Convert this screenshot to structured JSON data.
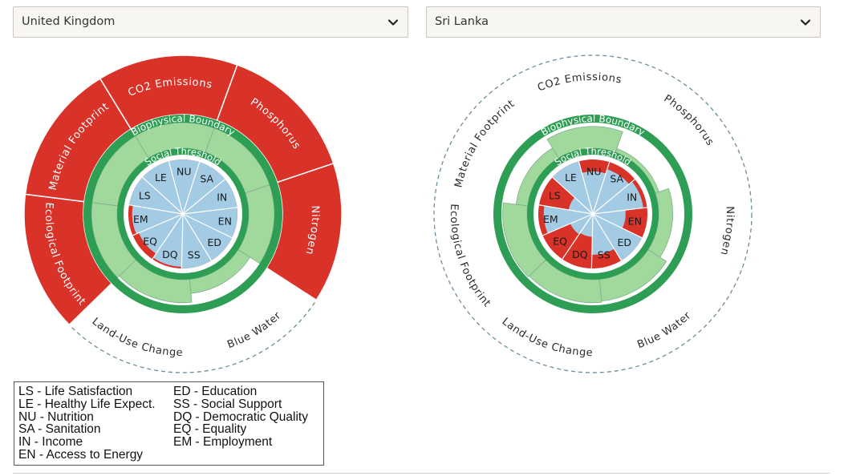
{
  "selectors": {
    "left": {
      "value": "United Kingdom"
    },
    "right": {
      "value": "Sri Lanka"
    }
  },
  "chart_data": [
    {
      "type": "doughnut",
      "country": "United Kingdom",
      "boundary_label": "Biophysical Boundary",
      "threshold_label": "Social Threshold",
      "biophysical": [
        {
          "label": "Phosphorus",
          "value": 2.1,
          "exceeds": true
        },
        {
          "label": "Nitrogen",
          "value": 2.1,
          "exceeds": true
        },
        {
          "label": "Blue Water",
          "value": 0.55,
          "exceeds": false
        },
        {
          "label": "Land-Use Change",
          "value": 0.9,
          "exceeds": false
        },
        {
          "label": "Ecological Footprint",
          "value": 2.1,
          "exceeds": true
        },
        {
          "label": "Material Footprint",
          "value": 2.1,
          "exceeds": true
        },
        {
          "label": "CO2 Emissions",
          "value": 2.1,
          "exceeds": true
        }
      ],
      "social": [
        {
          "code": "NU",
          "value": 1.0
        },
        {
          "code": "SA",
          "value": 1.0
        },
        {
          "code": "IN",
          "value": 1.0
        },
        {
          "code": "EN",
          "value": 1.0
        },
        {
          "code": "ED",
          "value": 1.0
        },
        {
          "code": "SS",
          "value": 1.0
        },
        {
          "code": "DQ",
          "value": 0.97
        },
        {
          "code": "EQ",
          "value": 0.88
        },
        {
          "code": "EM",
          "value": 0.93
        },
        {
          "code": "LS",
          "value": 1.0
        },
        {
          "code": "LE",
          "value": 1.0
        }
      ]
    },
    {
      "type": "doughnut",
      "country": "Sri Lanka",
      "boundary_label": "Biophysical Boundary",
      "threshold_label": "Social Threshold",
      "biophysical": [
        {
          "label": "Phosphorus",
          "value": 0.15,
          "exceeds": false
        },
        {
          "label": "Nitrogen",
          "value": 0.55,
          "exceeds": false
        },
        {
          "label": "Blue Water",
          "value": 0.85,
          "exceeds": false
        },
        {
          "label": "Land-Use Change",
          "value": 0.9,
          "exceeds": false
        },
        {
          "label": "Ecological Footprint",
          "value": 0.95,
          "exceeds": false
        },
        {
          "label": "Material Footprint",
          "value": 0.45,
          "exceeds": false
        },
        {
          "label": "CO2 Emissions",
          "value": 0.85,
          "exceeds": false
        }
      ],
      "social": [
        {
          "code": "NU",
          "value": 0.78
        },
        {
          "code": "SA",
          "value": 0.86
        },
        {
          "code": "IN",
          "value": 0.93
        },
        {
          "code": "EN",
          "value": 0.6
        },
        {
          "code": "ED",
          "value": 1.0
        },
        {
          "code": "SS",
          "value": 0.75
        },
        {
          "code": "DQ",
          "value": 0.42
        },
        {
          "code": "EQ",
          "value": 0.45
        },
        {
          "code": "EM",
          "value": 0.9
        },
        {
          "code": "LS",
          "value": 0.45
        },
        {
          "code": "LE",
          "value": 1.0
        }
      ]
    }
  ],
  "legend": {
    "col1": [
      "LS - Life Satisfaction",
      "LE - Healthy Life Expect.",
      "NU - Nutrition",
      "SA - Sanitation",
      "IN - Income",
      "EN - Access to Energy"
    ],
    "col2": [
      "ED - Education",
      "SS - Social Support",
      "DQ - Democratic Quality",
      "EQ - Equality",
      "EM - Employment"
    ]
  },
  "colors": {
    "ring_green": "#2e9e55",
    "light_green": "#a1d89c",
    "blue": "#a3cbe3",
    "red": "#d93229",
    "dashed": "#6b8e9b",
    "segment_line": "#7c9aa6"
  }
}
